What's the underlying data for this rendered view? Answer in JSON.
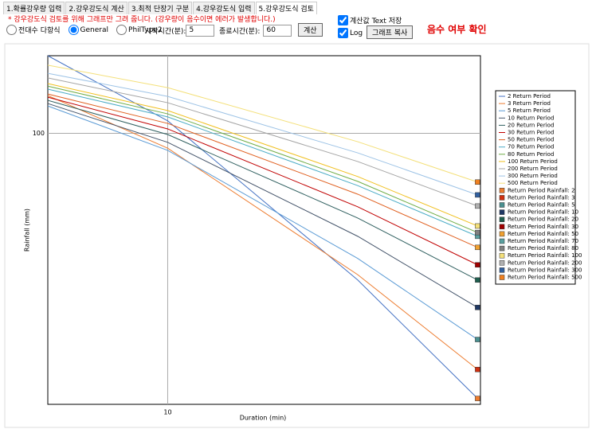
{
  "tabs": [
    "1.확률강우량 입력",
    "2.강우강도식 계산",
    "3.최적 단장기 구분",
    "4.강우강도식 입력",
    "5.강우강도식 검토"
  ],
  "note": "* 강우강도식 검토를 위해 그래프만 그려 줍니다. (강우량이 음수이면 에러가 발생합니다.)",
  "controls": {
    "radios": [
      {
        "label": "전대수 다항식",
        "checked": false
      },
      {
        "label": "General",
        "checked": true
      },
      {
        "label": "PhilType2",
        "checked": false
      }
    ],
    "start_label": "시작시간(분):",
    "start_value": "5",
    "end_label": "종료시간(분):",
    "end_value": "60",
    "calc_button": "계산",
    "save_text": {
      "label": "계산값 Text 저장",
      "checked": true
    },
    "log": {
      "label": "Log",
      "checked": true
    },
    "copy_button": "그래프 복사",
    "check_label": "음수 여부 확인"
  },
  "chart_data": {
    "type": "line",
    "xlabel": "Duration (min)",
    "ylabel": "Rainfall (mm)",
    "log_x": true,
    "log_y": true,
    "grid": true,
    "xlim": [
      5,
      61
    ],
    "ylim": [
      40,
      130
    ],
    "xticks": [
      10
    ],
    "yticks": [
      100
    ],
    "x": [
      5,
      10,
      30,
      60
    ],
    "series": [
      {
        "name": "2 Return Period",
        "color": "#4472c4",
        "values": [
          130.0,
          104.3,
          60.9,
          40.8
        ]
      },
      {
        "name": "3 Return Period",
        "color": "#ed7d31",
        "values": [
          113.6,
          95.1,
          62.0,
          45.0
        ]
      },
      {
        "name": "5 Return Period",
        "color": "#5b9bd5",
        "values": [
          109.7,
          94.4,
          65.5,
          49.8
        ]
      },
      {
        "name": "10 Return Period",
        "color": "#44546a",
        "values": [
          110.6,
          97.0,
          70.6,
          55.5
        ]
      },
      {
        "name": "20 Return Period",
        "color": "#2f5f5f",
        "values": [
          111.8,
          99.6,
          75.1,
          60.9
        ]
      },
      {
        "name": "30 Return Period",
        "color": "#c00000",
        "values": [
          113.0,
          101.5,
          78.0,
          64.1
        ]
      },
      {
        "name": "50 Return Period",
        "color": "#e06020",
        "values": [
          114.2,
          103.4,
          81.4,
          68.0
        ]
      },
      {
        "name": "70 Return Period",
        "color": "#4bacc6",
        "values": [
          116.1,
          105.7,
          83.8,
          70.6
        ]
      },
      {
        "name": "80 Return Period",
        "color": "#70ad47",
        "values": [
          117.3,
          106.8,
          85.0,
          71.5
        ]
      },
      {
        "name": "100 Return Period",
        "color": "#f0c020",
        "values": [
          118.3,
          108.0,
          86.4,
          73.1
        ]
      },
      {
        "name": "200 Return Period",
        "color": "#a5a5a5",
        "values": [
          120.6,
          110.9,
          90.9,
          78.2
        ]
      },
      {
        "name": "300 Return Period",
        "color": "#9dc3e6",
        "values": [
          122.5,
          113.3,
          93.6,
          81.2
        ]
      },
      {
        "name": "500 Return Period",
        "color": "#f4e07a",
        "values": [
          125.9,
          116.7,
          97.2,
          84.8
        ]
      },
      {
        "name": "Return Period Rainfall: 2",
        "color": "#ed7d31",
        "marker": true,
        "values": [
          null,
          null,
          null,
          40.8
        ]
      },
      {
        "name": "Return Period Rainfall: 3",
        "color": "#d03010",
        "marker": true,
        "values": [
          null,
          null,
          null,
          45.0
        ]
      },
      {
        "name": "Return Period Rainfall: 5",
        "color": "#4a9090",
        "marker": true,
        "values": [
          null,
          null,
          null,
          49.8
        ]
      },
      {
        "name": "Return Period Rainfall: 10",
        "color": "#1f3864",
        "marker": true,
        "values": [
          null,
          null,
          null,
          55.5
        ]
      },
      {
        "name": "Return Period Rainfall: 20",
        "color": "#1f5f4f",
        "marker": true,
        "values": [
          null,
          null,
          null,
          60.9
        ]
      },
      {
        "name": "Return Period Rainfall: 30",
        "color": "#a00000",
        "marker": true,
        "values": [
          null,
          null,
          null,
          64.1
        ]
      },
      {
        "name": "Return Period Rainfall: 50",
        "color": "#f0a030",
        "marker": true,
        "values": [
          null,
          null,
          null,
          68.0
        ]
      },
      {
        "name": "Return Period Rainfall: 70",
        "color": "#5aa0a0",
        "marker": true,
        "values": [
          null,
          null,
          null,
          70.6
        ]
      },
      {
        "name": "Return Period Rainfall: 80",
        "color": "#808080",
        "marker": true,
        "values": [
          null,
          null,
          null,
          71.5
        ]
      },
      {
        "name": "Return Period Rainfall: 100",
        "color": "#f4e07a",
        "marker": true,
        "values": [
          null,
          null,
          null,
          73.1
        ]
      },
      {
        "name": "Return Period Rainfall: 200",
        "color": "#b0b0b0",
        "marker": true,
        "values": [
          null,
          null,
          null,
          78.2
        ]
      },
      {
        "name": "Return Period Rainfall: 300",
        "color": "#3060a0",
        "marker": true,
        "values": [
          null,
          null,
          null,
          81.2
        ]
      },
      {
        "name": "Return Period Rainfall: 500",
        "color": "#f08020",
        "marker": true,
        "values": [
          null,
          null,
          null,
          84.8
        ]
      }
    ]
  }
}
